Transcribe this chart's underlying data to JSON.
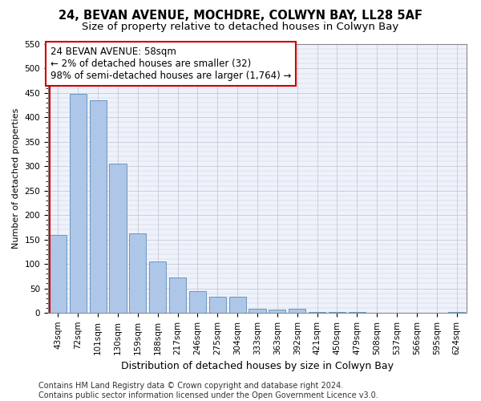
{
  "title": "24, BEVAN AVENUE, MOCHDRE, COLWYN BAY, LL28 5AF",
  "subtitle": "Size of property relative to detached houses in Colwyn Bay",
  "xlabel": "Distribution of detached houses by size in Colwyn Bay",
  "ylabel": "Number of detached properties",
  "categories": [
    "43sqm",
    "72sqm",
    "101sqm",
    "130sqm",
    "159sqm",
    "188sqm",
    "217sqm",
    "246sqm",
    "275sqm",
    "304sqm",
    "333sqm",
    "363sqm",
    "392sqm",
    "421sqm",
    "450sqm",
    "479sqm",
    "508sqm",
    "537sqm",
    "566sqm",
    "595sqm",
    "624sqm"
  ],
  "values": [
    160,
    448,
    435,
    305,
    163,
    105,
    73,
    44,
    33,
    33,
    8,
    7,
    8,
    2,
    1,
    1,
    0,
    0,
    0,
    0,
    1
  ],
  "bar_color": "#aec6e8",
  "bar_edge_color": "#5b8db8",
  "annotation_box_text": "24 BEVAN AVENUE: 58sqm\n← 2% of detached houses are smaller (32)\n98% of semi-detached houses are larger (1,764) →",
  "annotation_box_color": "#ffffff",
  "annotation_box_edge_color": "#cc0000",
  "vline_color": "#cc0000",
  "ylim": [
    0,
    550
  ],
  "yticks": [
    0,
    50,
    100,
    150,
    200,
    250,
    300,
    350,
    400,
    450,
    500,
    550
  ],
  "bg_color": "#eef2fb",
  "grid_color": "#c8c8d8",
  "footer_text": "Contains HM Land Registry data © Crown copyright and database right 2024.\nContains public sector information licensed under the Open Government Licence v3.0.",
  "title_fontsize": 10.5,
  "subtitle_fontsize": 9.5,
  "xlabel_fontsize": 9,
  "ylabel_fontsize": 8,
  "tick_fontsize": 7.5,
  "annotation_fontsize": 8.5,
  "footer_fontsize": 7
}
